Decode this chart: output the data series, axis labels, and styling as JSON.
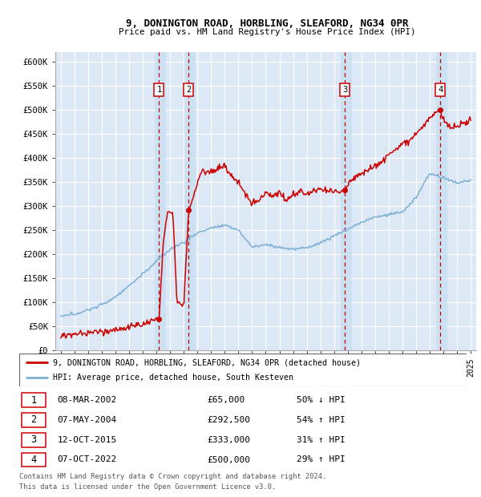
{
  "title1": "9, DONINGTON ROAD, HORBLING, SLEAFORD, NG34 0PR",
  "title2": "Price paid vs. HM Land Registry's House Price Index (HPI)",
  "ylabel_ticks": [
    "£0",
    "£50K",
    "£100K",
    "£150K",
    "£200K",
    "£250K",
    "£300K",
    "£350K",
    "£400K",
    "£450K",
    "£500K",
    "£550K",
    "£600K"
  ],
  "ytick_values": [
    0,
    50000,
    100000,
    150000,
    200000,
    250000,
    300000,
    350000,
    400000,
    450000,
    500000,
    550000,
    600000
  ],
  "xmin": 1994.6,
  "xmax": 2025.4,
  "ymin": 0,
  "ymax": 620000,
  "legend_line1": "9, DONINGTON ROAD, HORBLING, SLEAFORD, NG34 0PR (detached house)",
  "legend_line2": "HPI: Average price, detached house, South Kesteven",
  "transactions": [
    {
      "num": 1,
      "date": "08-MAR-2002",
      "price": "£65,000",
      "pct": "50% ↓ HPI",
      "year": 2002.19,
      "value": 65000
    },
    {
      "num": 2,
      "date": "07-MAY-2004",
      "price": "£292,500",
      "pct": "54% ↑ HPI",
      "year": 2004.36,
      "value": 292500
    },
    {
      "num": 3,
      "date": "12-OCT-2015",
      "price": "£333,000",
      "pct": "31% ↑ HPI",
      "year": 2015.78,
      "value": 333000
    },
    {
      "num": 4,
      "date": "07-OCT-2022",
      "price": "£500,000",
      "pct": "29% ↑ HPI",
      "year": 2022.77,
      "value": 500000
    }
  ],
  "footer1": "Contains HM Land Registry data © Crown copyright and database right 2024.",
  "footer2": "This data is licensed under the Open Government Licence v3.0.",
  "line_color_red": "#cc0000",
  "line_color_blue": "#7bafd4",
  "bg_color": "#dce8f5",
  "grid_color": "#ffffff",
  "dashed_color": "#cc0000",
  "shade_color": "#c8dff0"
}
